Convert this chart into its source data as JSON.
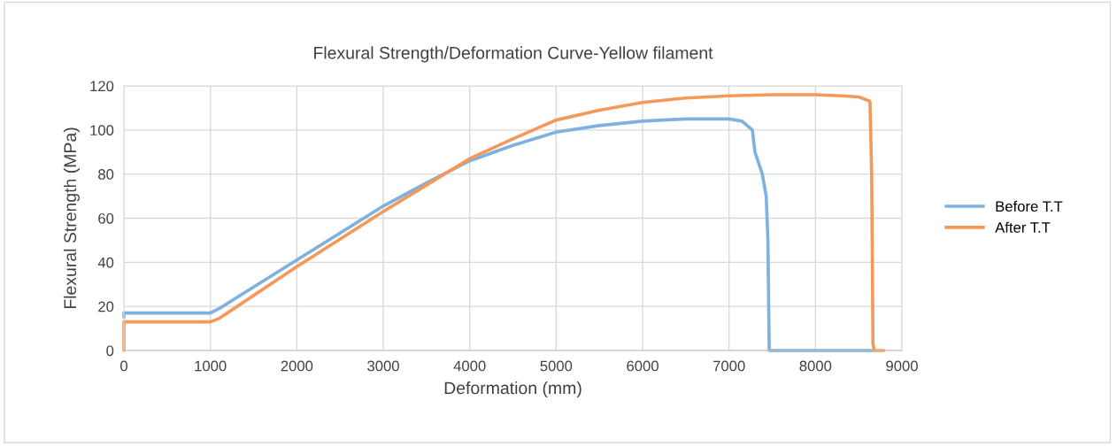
{
  "chart_data": {
    "type": "line",
    "title": "Flexural Strength/Deformation Curve-Yellow filament",
    "xlabel": "Deformation (mm)",
    "ylabel": "Flexural Strength (MPa)",
    "xlim": [
      0,
      9000
    ],
    "xticks": [
      0,
      1000,
      2000,
      3000,
      4000,
      5000,
      6000,
      7000,
      8000,
      9000
    ],
    "ylim": [
      0,
      120
    ],
    "yticks": [
      0,
      20,
      40,
      60,
      80,
      100,
      120
    ],
    "grid": true,
    "legend": "right",
    "marker": "none",
    "line_style": "solid",
    "series": [
      {
        "name": "Before T.T",
        "color": "#7eb0e0",
        "x": [
          0,
          0,
          1000,
          1100,
          2000,
          3000,
          3500,
          4000,
          4500,
          5000,
          5500,
          6000,
          6500,
          7000,
          7150,
          7270,
          7300,
          7385,
          7430,
          7450,
          7465,
          8665
        ],
        "values": [
          15,
          17,
          17,
          19,
          41,
          65.5,
          76,
          86,
          93,
          99,
          102,
          104,
          105,
          105,
          104,
          100,
          90,
          80,
          70,
          50,
          0,
          0
        ]
      },
      {
        "name": "After T.T",
        "color": "#f4995a",
        "x": [
          0,
          0,
          1000,
          1100,
          2000,
          3000,
          3500,
          4000,
          4500,
          5000,
          5500,
          6000,
          6500,
          7000,
          7500,
          8000,
          8300,
          8500,
          8630,
          8650,
          8665,
          8680,
          8790
        ],
        "values": [
          0,
          13,
          13,
          14.5,
          38,
          63,
          75,
          87,
          96,
          104.5,
          109,
          112.5,
          114.5,
          115.5,
          116,
          116,
          115.5,
          115,
          113,
          80,
          3,
          0,
          0
        ]
      }
    ]
  }
}
